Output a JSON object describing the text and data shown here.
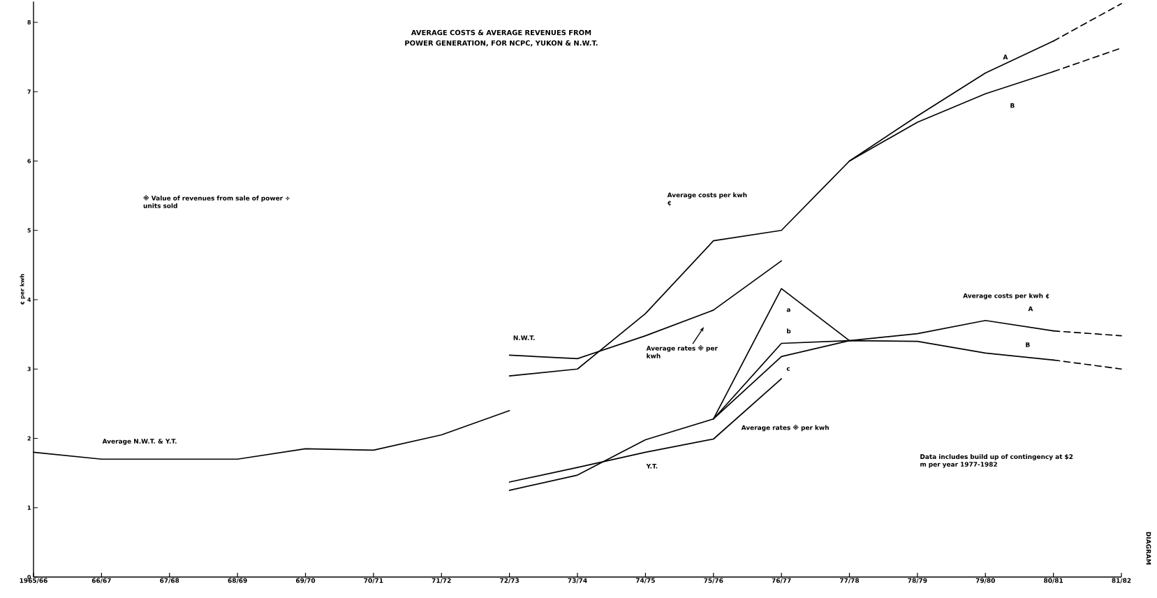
{
  "chart_data": {
    "type": "line",
    "title": "AVERAGE COSTS & AVERAGE REVENUES FROM POWER GENERATION, FOR NCPC, YUKON & N.W.T.",
    "ylabel": "¢ per kwh",
    "categories": [
      "1965/66",
      "66/67",
      "67/68",
      "68/69",
      "69/70",
      "70/71",
      "71/72",
      "72/73",
      "73/74",
      "74/75",
      "75/76",
      "76/77",
      "77/78",
      "78/79",
      "79/80",
      "80/81",
      "81/82"
    ],
    "ylim": [
      0,
      8.3
    ],
    "yticks": [
      0,
      1,
      2,
      3,
      4,
      5,
      6,
      7,
      8
    ],
    "line_style": "solid",
    "series": [
      {
        "color": "#000000",
        "values": [
          1.8,
          1.7,
          1.7,
          1.7,
          1.85,
          1.83,
          2.05,
          2.4,
          null,
          null,
          null,
          null,
          null,
          null,
          null,
          null,
          null
        ]
      },
      {
        "color": "#000000",
        "values": [
          null,
          null,
          null,
          null,
          null,
          null,
          null,
          2.9,
          3.0,
          3.8,
          4.85,
          5.0,
          6.0,
          6.65,
          7.27,
          7.73,
          null
        ]
      },
      {
        "color": "#000000",
        "values": [
          null,
          null,
          null,
          null,
          null,
          null,
          null,
          null,
          null,
          null,
          null,
          null,
          6.0,
          6.56,
          6.97,
          7.29,
          null
        ]
      },
      {
        "color": "#000000",
        "line_style": "dashed",
        "values": [
          null,
          null,
          null,
          null,
          null,
          null,
          null,
          null,
          null,
          null,
          null,
          null,
          null,
          null,
          null,
          7.73,
          8.27
        ]
      },
      {
        "color": "#000000",
        "line_style": "dashed",
        "values": [
          null,
          null,
          null,
          null,
          null,
          null,
          null,
          null,
          null,
          null,
          null,
          null,
          null,
          null,
          null,
          7.29,
          7.63
        ]
      },
      {
        "color": "#000000",
        "values": [
          null,
          null,
          null,
          null,
          null,
          null,
          null,
          3.2,
          3.15,
          3.48,
          3.85,
          4.56,
          null,
          null,
          null,
          null,
          null
        ]
      },
      {
        "color": "#000000",
        "values": [
          null,
          null,
          null,
          null,
          null,
          null,
          null,
          1.25,
          1.47,
          1.98,
          2.28,
          4.16,
          3.41,
          3.51,
          3.7,
          3.55,
          null
        ]
      },
      {
        "color": "#000000",
        "values": [
          null,
          null,
          null,
          null,
          null,
          null,
          null,
          null,
          null,
          null,
          2.28,
          3.37,
          3.41,
          3.4,
          3.23,
          3.13,
          null
        ]
      },
      {
        "color": "#000000",
        "values": [
          null,
          null,
          null,
          null,
          null,
          null,
          null,
          null,
          null,
          null,
          2.28,
          3.18,
          3.41,
          null,
          null,
          null,
          null
        ]
      },
      {
        "color": "#000000",
        "line_style": "dashed",
        "values": [
          null,
          null,
          null,
          null,
          null,
          null,
          null,
          null,
          null,
          null,
          null,
          null,
          null,
          null,
          null,
          3.55,
          3.48
        ]
      },
      {
        "color": "#000000",
        "line_style": "dashed",
        "values": [
          null,
          null,
          null,
          null,
          null,
          null,
          null,
          null,
          null,
          null,
          null,
          null,
          null,
          null,
          null,
          3.13,
          3.0
        ]
      },
      {
        "color": "#000000",
        "values": [
          null,
          null,
          null,
          null,
          null,
          null,
          null,
          1.37,
          1.58,
          1.8,
          1.99,
          2.86,
          null,
          null,
          null,
          null,
          null
        ]
      }
    ],
    "annotations": [
      "Average N.W.T. & Y.T.",
      "N.W.T.",
      "Y.T.",
      "Average costs per kwh ¢",
      "Average rates ※ per kwh",
      "Average rates ※ per kwh",
      "Average costs per kwh ¢",
      "a",
      "b",
      "c",
      "A",
      "B",
      "A",
      "B",
      "※ Value of revenues from sale of power ÷ units sold",
      "Data includes build up of contingency at $2 m per year 1977-1982",
      "DIAGRAM"
    ]
  }
}
